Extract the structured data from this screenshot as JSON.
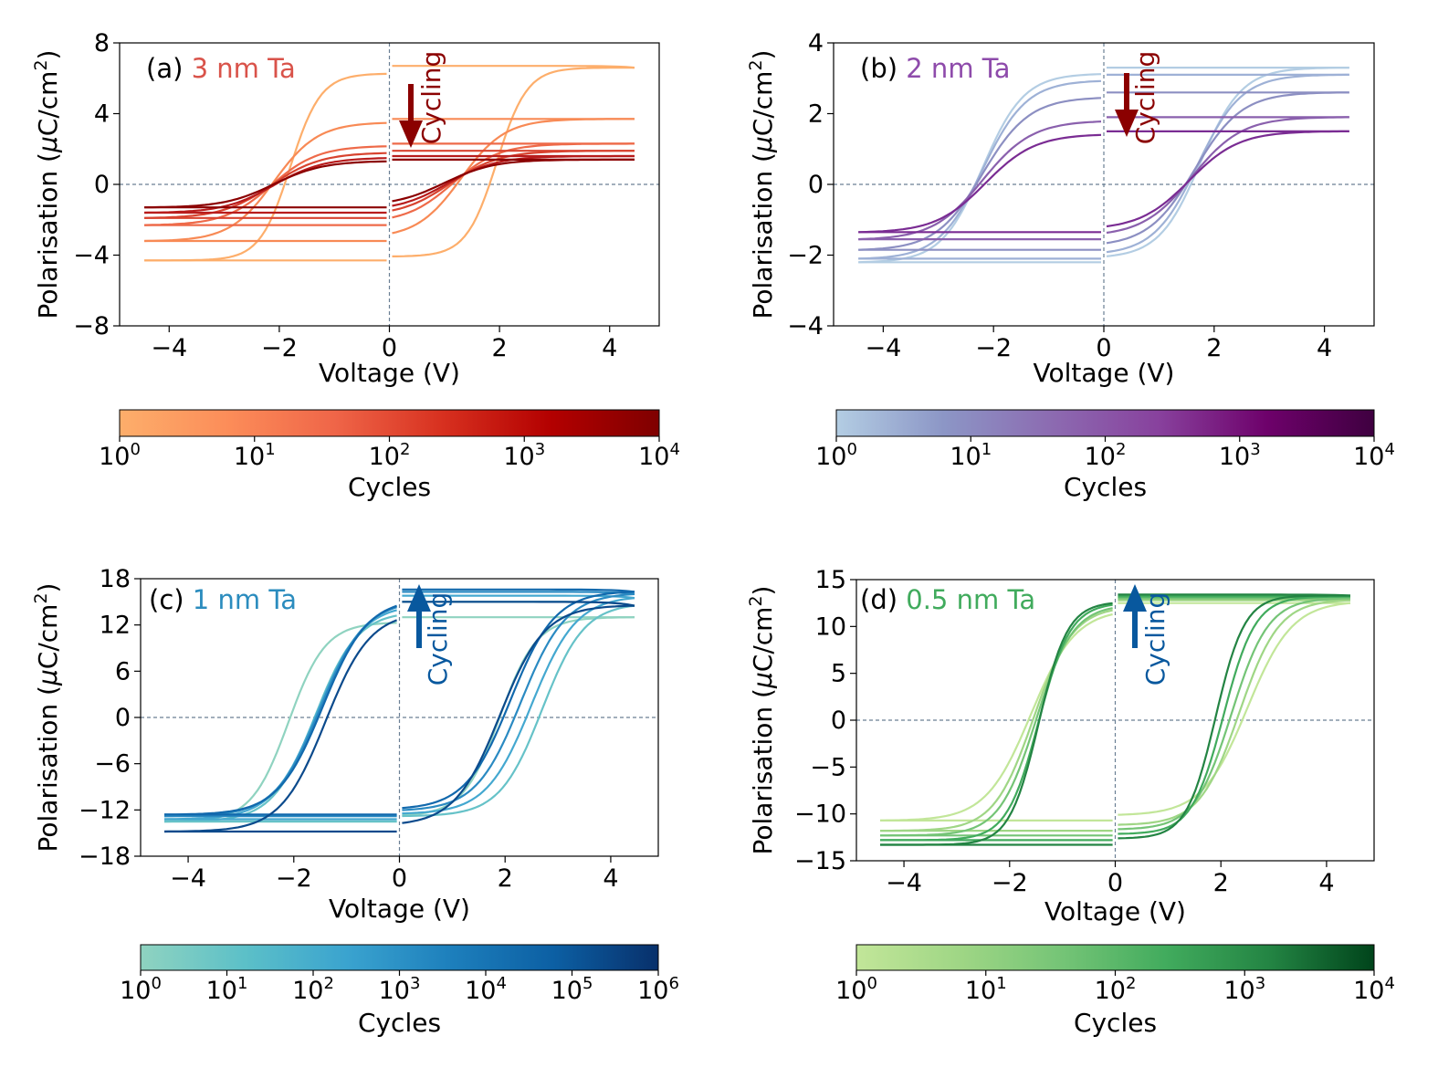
{
  "chart_data": [
    {
      "panel": "a",
      "type": "line",
      "label_letter": "(a)",
      "label_text": "3 nm Ta",
      "label_color": "#d9534a",
      "xlabel": "Voltage (V)",
      "ylabel": "Polarisation (μC/cm²)",
      "ylabel_prefix": "Polarisation (",
      "ylabel_mu": "μ",
      "ylabel_unit": "C/cm",
      "ylabel_sup": "2",
      "ylabel_suffix": ")",
      "xlim": [
        -4.9,
        4.9
      ],
      "ylim": [
        -8,
        8
      ],
      "xticks": [
        -4,
        -2,
        0,
        2,
        4
      ],
      "xtick_labels": [
        "−4",
        "−2",
        "0",
        "2",
        "4"
      ],
      "yticks": [
        -8,
        -4,
        0,
        4,
        8
      ],
      "ytick_labels": [
        "−8",
        "−4",
        "0",
        "4",
        "8"
      ],
      "annotation": "Cycling",
      "arrow_direction": "down",
      "arrow_color": "#8b0000",
      "colorbar": {
        "label": "Cycles",
        "colors": [
          "#fdae6b",
          "#fc8d59",
          "#ef6548",
          "#d7301f",
          "#b30000",
          "#7f0000"
        ],
        "ticks": [
          {
            "base": "10",
            "exp": "0"
          },
          {
            "base": "10",
            "exp": "1"
          },
          {
            "base": "10",
            "exp": "2"
          },
          {
            "base": "10",
            "exp": "3"
          },
          {
            "base": "10",
            "exp": "4"
          }
        ]
      },
      "series": [
        {
          "name": "cycle 1",
          "color": "#fdae6b",
          "vc_neg": -1.8,
          "vc_pos": 1.95,
          "pr_pos": 6.7,
          "pr_neg": -4.3,
          "pmax": 6.6,
          "pmin": -4.3,
          "width": 0.55
        },
        {
          "name": "cycle 2",
          "color": "#f88a55",
          "vc_neg": -2.1,
          "vc_pos": 1.3,
          "pr_pos": 3.7,
          "pr_neg": -3.2,
          "pmax": 3.7,
          "pmin": -3.2,
          "width": 0.8
        },
        {
          "name": "cycle 3",
          "color": "#ee6a49",
          "vc_neg": -2.15,
          "vc_pos": 1.15,
          "pr_pos": 2.3,
          "pr_neg": -2.3,
          "pmax": 2.3,
          "pmin": -2.3,
          "width": 0.85
        },
        {
          "name": "cycle 4",
          "color": "#d8432f",
          "vc_neg": -2.15,
          "vc_pos": 1.1,
          "pr_pos": 1.9,
          "pr_neg": -1.9,
          "pmax": 1.9,
          "pmin": -1.9,
          "width": 0.9
        },
        {
          "name": "cycle 5",
          "color": "#b81c1c",
          "vc_neg": -2.1,
          "vc_pos": 1.05,
          "pr_pos": 1.6,
          "pr_neg": -1.6,
          "pmax": 1.6,
          "pmin": -1.6,
          "width": 0.9
        },
        {
          "name": "cycle 6",
          "color": "#8b0000",
          "vc_neg": -2.1,
          "vc_pos": 1.0,
          "pr_pos": 1.4,
          "pr_neg": -1.3,
          "pmax": 1.4,
          "pmin": -1.3,
          "width": 0.9
        }
      ]
    },
    {
      "panel": "b",
      "type": "line",
      "label_letter": "(b)",
      "label_text": "2 nm Ta",
      "label_color": "#8e4bab",
      "xlabel": "Voltage (V)",
      "ylabel": "Polarisation (μC/cm²)",
      "ylabel_prefix": "Polarisation (",
      "ylabel_mu": "μ",
      "ylabel_unit": "C/cm",
      "ylabel_sup": "2",
      "ylabel_suffix": ")",
      "xlim": [
        -4.9,
        4.9
      ],
      "ylim": [
        -4,
        4
      ],
      "xticks": [
        -4,
        -2,
        0,
        2,
        4
      ],
      "xtick_labels": [
        "−4",
        "−2",
        "0",
        "2",
        "4"
      ],
      "yticks": [
        -4,
        -2,
        0,
        2,
        4
      ],
      "ytick_labels": [
        "−4",
        "−2",
        "0",
        "2",
        "4"
      ],
      "annotation": "Cycling",
      "arrow_direction": "down",
      "arrow_color": "#8b0000",
      "colorbar": {
        "label": "Cycles",
        "colors": [
          "#b3cde3",
          "#8c96c6",
          "#8c6bb1",
          "#88419d",
          "#6e016b",
          "#3f0040"
        ],
        "ticks": [
          {
            "base": "10",
            "exp": "0"
          },
          {
            "base": "10",
            "exp": "1"
          },
          {
            "base": "10",
            "exp": "2"
          },
          {
            "base": "10",
            "exp": "3"
          },
          {
            "base": "10",
            "exp": "4"
          }
        ]
      },
      "series": [
        {
          "name": "cycle 1",
          "color": "#b3cde3",
          "vc_neg": -2.2,
          "vc_pos": 1.75,
          "pr_pos": 3.3,
          "pr_neg": -2.2,
          "pmax": 3.3,
          "pmin": -2.2,
          "width": 0.75
        },
        {
          "name": "cycle 2",
          "color": "#9eb1d6",
          "vc_neg": -2.2,
          "vc_pos": 1.7,
          "pr_pos": 3.1,
          "pr_neg": -2.1,
          "pmax": 3.1,
          "pmin": -2.1,
          "width": 0.8
        },
        {
          "name": "cycle 3",
          "color": "#8c8fc2",
          "vc_neg": -2.2,
          "vc_pos": 1.65,
          "pr_pos": 2.6,
          "pr_neg": -1.85,
          "pmax": 2.6,
          "pmin": -1.85,
          "width": 0.85
        },
        {
          "name": "cycle 4",
          "color": "#8a60ad",
          "vc_neg": -2.2,
          "vc_pos": 1.6,
          "pr_pos": 1.9,
          "pr_neg": -1.55,
          "pmax": 1.9,
          "pmin": -1.55,
          "width": 0.9
        },
        {
          "name": "cycle 5",
          "color": "#7a2c93",
          "vc_neg": -2.15,
          "vc_pos": 1.55,
          "pr_pos": 1.5,
          "pr_neg": -1.35,
          "pmax": 1.5,
          "pmin": -1.35,
          "width": 0.9
        }
      ]
    },
    {
      "panel": "c",
      "type": "line",
      "label_letter": "(c)",
      "label_text": "1 nm Ta",
      "label_color": "#2b8cbe",
      "xlabel": "Voltage (V)",
      "ylabel": "Polarisation (μC/cm²)",
      "ylabel_prefix": "Polarisation (",
      "ylabel_mu": "μ",
      "ylabel_unit": "C/cm",
      "ylabel_sup": "2",
      "ylabel_suffix": ")",
      "xlim": [
        -4.9,
        4.9
      ],
      "ylim": [
        -18,
        18
      ],
      "xticks": [
        -4,
        -2,
        0,
        2,
        4
      ],
      "xtick_labels": [
        "−4",
        "−2",
        "0",
        "2",
        "4"
      ],
      "yticks": [
        -18,
        -12,
        -6,
        0,
        6,
        12,
        18
      ],
      "ytick_labels": [
        "−18",
        "−12",
        "−6",
        "0",
        "6",
        "12",
        "18"
      ],
      "annotation": "Cycling",
      "arrow_direction": "up",
      "arrow_color": "#08589e",
      "colorbar": {
        "label": "Cycles",
        "colors": [
          "#8fd3c0",
          "#5cc0c8",
          "#3aa3cf",
          "#1d7fbc",
          "#0c5fa3",
          "#08306b"
        ],
        "ticks": [
          {
            "base": "10",
            "exp": "0"
          },
          {
            "base": "10",
            "exp": "1"
          },
          {
            "base": "10",
            "exp": "2"
          },
          {
            "base": "10",
            "exp": "3"
          },
          {
            "base": "10",
            "exp": "4"
          },
          {
            "base": "10",
            "exp": "5"
          },
          {
            "base": "10",
            "exp": "6"
          }
        ]
      },
      "series": [
        {
          "name": "cycle 1",
          "color": "#8fd3c0",
          "vc_neg": -2.1,
          "vc_pos": 1.9,
          "pr_pos": 13.0,
          "pr_neg": -13.5,
          "pmax": 13.0,
          "pmin": -13.5,
          "width": 0.7
        },
        {
          "name": "cycle 2",
          "color": "#66c2c8",
          "vc_neg": -1.6,
          "vc_pos": 2.7,
          "pr_pos": 15.0,
          "pr_neg": -13.5,
          "pmax": 14.5,
          "pmin": -13.5,
          "width": 0.8
        },
        {
          "name": "cycle 3",
          "color": "#44a8d0",
          "vc_neg": -1.55,
          "vc_pos": 2.5,
          "pr_pos": 15.8,
          "pr_neg": -13.2,
          "pmax": 15.5,
          "pmin": -13.2,
          "width": 0.85
        },
        {
          "name": "cycle 4",
          "color": "#2a8ac2",
          "vc_neg": -1.5,
          "vc_pos": 2.3,
          "pr_pos": 16.3,
          "pr_neg": -12.8,
          "pmax": 16.0,
          "pmin": -12.8,
          "width": 0.85
        },
        {
          "name": "cycle 5",
          "color": "#1269ad",
          "vc_neg": -1.45,
          "vc_pos": 2.1,
          "pr_pos": 16.6,
          "pr_neg": -12.6,
          "pmax": 16.3,
          "pmin": -12.6,
          "width": 0.85
        },
        {
          "name": "cycle 6",
          "color": "#0b4a8c",
          "vc_neg": -1.4,
          "vc_pos": 1.9,
          "pr_pos": 15.0,
          "pr_neg": -14.8,
          "pmax": 14.5,
          "pmin": -14.8,
          "width": 0.85
        }
      ]
    },
    {
      "panel": "d",
      "type": "line",
      "label_letter": "(d)",
      "label_text": "0.5 nm Ta",
      "label_color": "#41ab5d",
      "xlabel": "Voltage (V)",
      "ylabel": "Polarisation (μC/cm²)",
      "ylabel_prefix": "Polarisation (",
      "ylabel_mu": "μ",
      "ylabel_unit": "C/cm",
      "ylabel_sup": "2",
      "ylabel_suffix": ")",
      "xlim": [
        -4.9,
        4.9
      ],
      "ylim": [
        -15,
        15
      ],
      "xticks": [
        -4,
        -2,
        0,
        2,
        4
      ],
      "xtick_labels": [
        "−4",
        "−2",
        "0",
        "2",
        "4"
      ],
      "yticks": [
        -15,
        -10,
        -5,
        0,
        5,
        10,
        15
      ],
      "ytick_labels": [
        "−15",
        "−10",
        "−5",
        "0",
        "5",
        "10",
        "15"
      ],
      "annotation": "Cycling",
      "arrow_direction": "up",
      "arrow_color": "#08589e",
      "colorbar": {
        "label": "Cycles",
        "colors": [
          "#c2e699",
          "#9fd685",
          "#74c476",
          "#41ab5d",
          "#238443",
          "#00441b"
        ],
        "ticks": [
          {
            "base": "10",
            "exp": "0"
          },
          {
            "base": "10",
            "exp": "1"
          },
          {
            "base": "10",
            "exp": "2"
          },
          {
            "base": "10",
            "exp": "3"
          },
          {
            "base": "10",
            "exp": "4"
          }
        ]
      },
      "series": [
        {
          "name": "cycle 1",
          "color": "#c2e699",
          "vc_neg": -1.6,
          "vc_pos": 2.5,
          "pr_pos": 12.5,
          "pr_neg": -10.7,
          "pmax": 12.5,
          "pmin": -10.7,
          "width": 0.85
        },
        {
          "name": "cycle 2",
          "color": "#9fd685",
          "vc_neg": -1.55,
          "vc_pos": 2.35,
          "pr_pos": 12.8,
          "pr_neg": -11.8,
          "pmax": 12.8,
          "pmin": -11.8,
          "width": 0.75
        },
        {
          "name": "cycle 3",
          "color": "#74c476",
          "vc_neg": -1.5,
          "vc_pos": 2.2,
          "pr_pos": 13.0,
          "pr_neg": -12.3,
          "pmax": 13.0,
          "pmin": -12.3,
          "width": 0.7
        },
        {
          "name": "cycle 4",
          "color": "#41ab5d",
          "vc_neg": -1.45,
          "vc_pos": 2.05,
          "pr_pos": 13.2,
          "pr_neg": -12.8,
          "pmax": 13.2,
          "pmin": -12.8,
          "width": 0.6
        },
        {
          "name": "cycle 5",
          "color": "#238443",
          "vc_neg": -1.45,
          "vc_pos": 1.9,
          "pr_pos": 13.4,
          "pr_neg": -13.3,
          "pmax": 13.3,
          "pmin": -13.3,
          "width": 0.55
        }
      ]
    }
  ]
}
